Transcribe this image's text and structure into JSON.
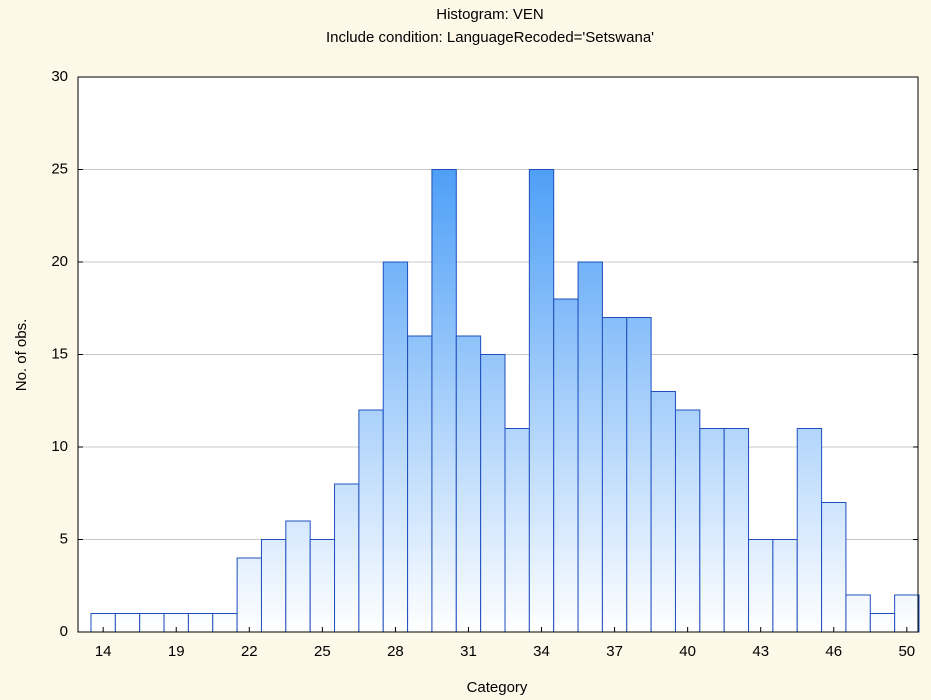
{
  "chart_data": {
    "type": "bar",
    "title": "Histogram: VEN",
    "subtitle": "Include condition: LanguageRecoded='Setswana'",
    "x_label": "Category",
    "y_label": "No. of obs.",
    "categories": [
      "14",
      null,
      null,
      "19",
      null,
      null,
      "22",
      null,
      null,
      "25",
      null,
      null,
      "28",
      null,
      null,
      "31",
      null,
      null,
      "34",
      null,
      null,
      "37",
      null,
      null,
      "40",
      null,
      null,
      "43",
      null,
      null,
      "46",
      null,
      null,
      "50"
    ],
    "values": [
      1,
      1,
      1,
      1,
      1,
      1,
      4,
      5,
      6,
      5,
      8,
      12,
      20,
      16,
      25,
      16,
      15,
      11,
      25,
      18,
      20,
      17,
      17,
      13,
      12,
      11,
      11,
      5,
      5,
      11,
      7,
      2,
      1,
      2
    ],
    "color": "#2b8cf5",
    "edge_color": "#1f4fbf",
    "ylim": [
      0,
      30
    ],
    "yticks": [
      0,
      5,
      10,
      15,
      20,
      25,
      30
    ],
    "grid": true
  }
}
